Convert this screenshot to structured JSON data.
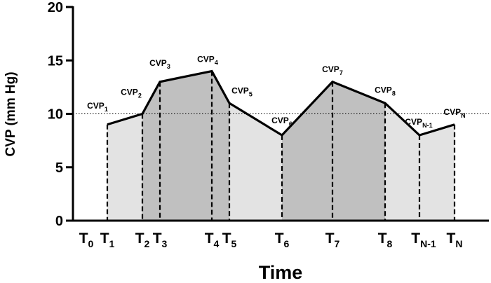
{
  "chart_data": {
    "type": "area",
    "title": "",
    "xlabel": "Time",
    "ylabel": "CVP (mm Hg)",
    "ylim": [
      0,
      20
    ],
    "yticks": [
      "0",
      "5",
      "10",
      "15",
      "20"
    ],
    "reference_line": {
      "y": 10,
      "style": "dotted"
    },
    "grid": false,
    "points": [
      {
        "x": 1,
        "y": 9,
        "x_label": "T",
        "x_sub": "1",
        "cvp_label": "CVP",
        "cvp_sub": "1",
        "shade_after": "light"
      },
      {
        "x": 2,
        "y": 10,
        "x_label": "T",
        "x_sub": "2",
        "cvp_label": "CVP",
        "cvp_sub": "2",
        "shade_after": "dark"
      },
      {
        "x": 3,
        "y": 13,
        "x_label": "T",
        "x_sub": "3",
        "cvp_label": "CVP",
        "cvp_sub": "3",
        "shade_after": "dark"
      },
      {
        "x": 4,
        "y": 14,
        "x_label": "T",
        "x_sub": "4",
        "cvp_label": "CVP",
        "cvp_sub": "4",
        "shade_after": "dark"
      },
      {
        "x": 5,
        "y": 11,
        "x_label": "T",
        "x_sub": "5",
        "cvp_label": "CVP",
        "cvp_sub": "5",
        "shade_after": "light"
      },
      {
        "x": 6,
        "y": 8,
        "x_label": "T",
        "x_sub": "6",
        "cvp_label": "CVP",
        "cvp_sub": "6",
        "shade_after": "dark"
      },
      {
        "x": 7,
        "y": 13,
        "x_label": "T",
        "x_sub": "7",
        "cvp_label": "CVP",
        "cvp_sub": "7",
        "shade_after": "dark"
      },
      {
        "x": 8,
        "y": 11,
        "x_label": "T",
        "x_sub": "8",
        "cvp_label": "CVP",
        "cvp_sub": "8",
        "shade_after": "light"
      },
      {
        "x": 9,
        "y": 8,
        "x_label": "T",
        "x_sub": "N-1",
        "cvp_label": "CVP",
        "cvp_sub": "N-1",
        "shade_after": "light"
      },
      {
        "x": 10,
        "y": 9,
        "x_label": "T",
        "x_sub": "N",
        "cvp_label": "CVP",
        "cvp_sub": "N",
        "shade_after": "none"
      }
    ],
    "origin_tick": {
      "x_label": "T",
      "x_sub": "0"
    },
    "colors": {
      "light_fill": "#e3e3e3",
      "dark_fill": "#c0c0c0",
      "line": "#000000"
    }
  }
}
